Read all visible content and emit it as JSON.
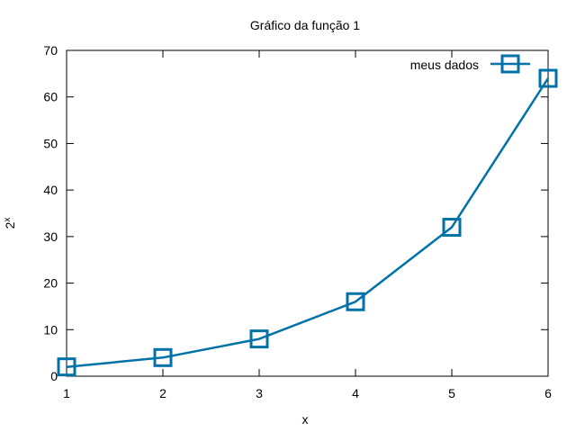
{
  "chart_data": {
    "type": "line",
    "title": "Gráfico da função 1",
    "xlabel": "x",
    "ylabel_base": "2",
    "ylabel_sup": "x",
    "xlim": [
      1,
      6
    ],
    "ylim": [
      0,
      70
    ],
    "x_ticks": [
      1,
      2,
      3,
      4,
      5,
      6
    ],
    "y_ticks": [
      0,
      10,
      20,
      30,
      40,
      50,
      60,
      70
    ],
    "grid": false,
    "legend_position": "top-right",
    "series": [
      {
        "name": "meus dados",
        "color": "#0072a8",
        "marker": "square",
        "x": [
          1,
          2,
          3,
          4,
          5,
          6
        ],
        "y": [
          2,
          4,
          8,
          16,
          32,
          64
        ]
      }
    ]
  }
}
